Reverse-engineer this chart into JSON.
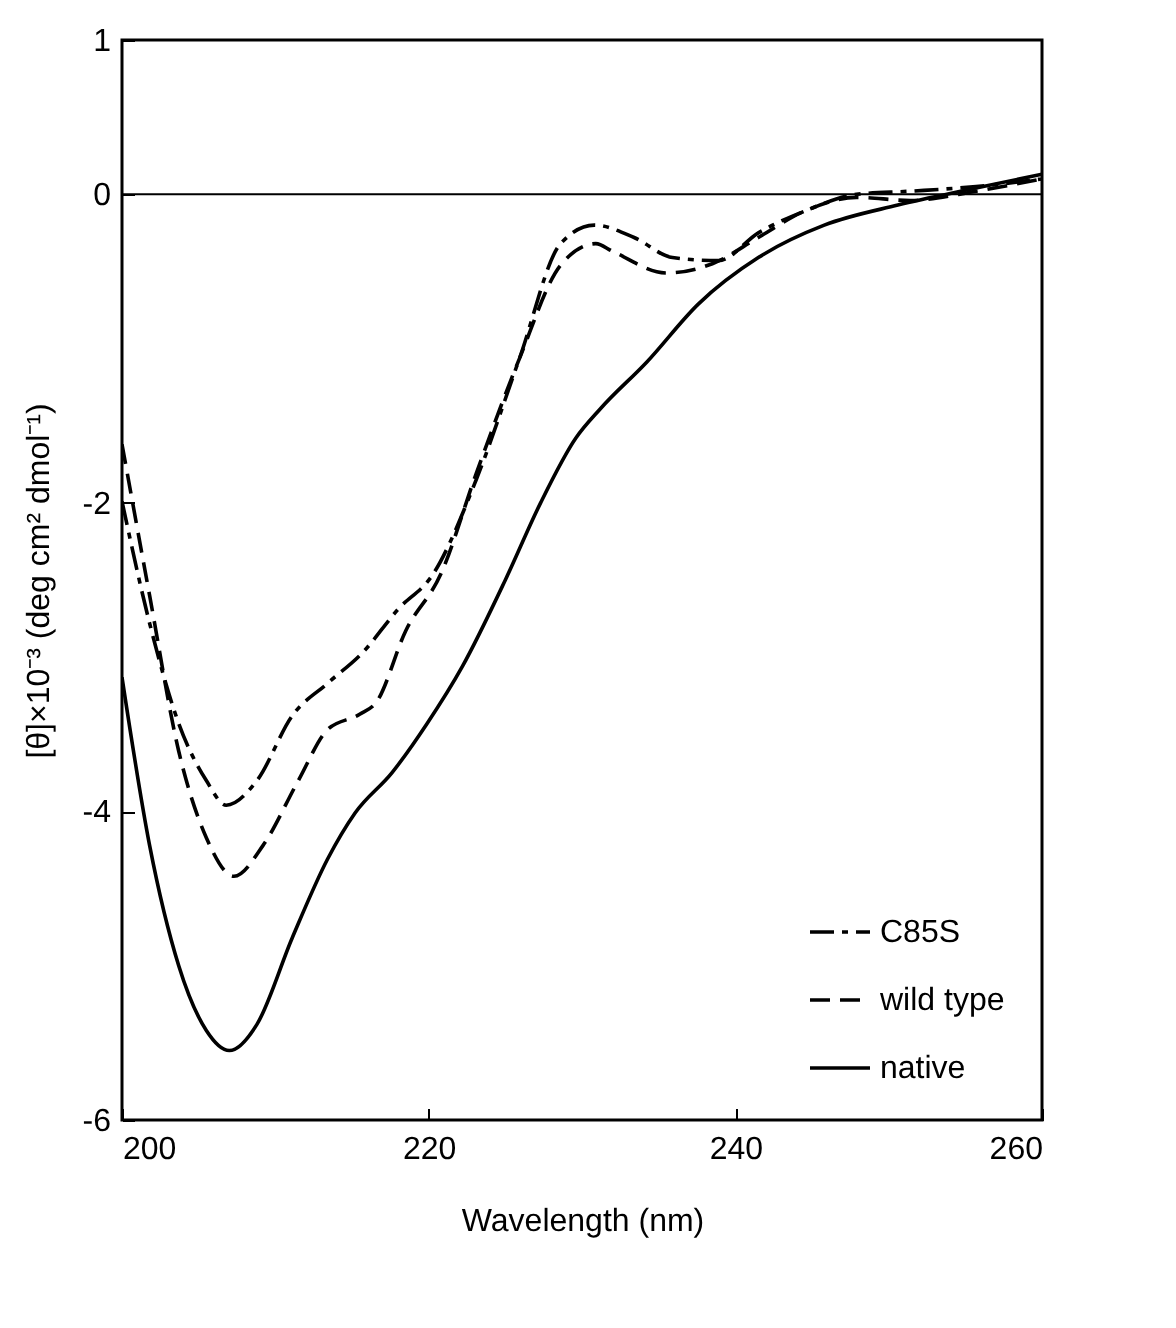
{
  "chart_data": {
    "type": "line",
    "xlabel": "Wavelength  (nm)",
    "ylabel": "[θ]×10⁻³ (deg cm² dmol⁻¹)",
    "xlim": [
      200,
      260
    ],
    "ylim": [
      -6,
      1
    ],
    "xticks": [
      200,
      220,
      240,
      260
    ],
    "yticks": [
      1,
      0,
      -2,
      -4,
      -6
    ],
    "grid": false,
    "legend": "bottom right",
    "marker": "none",
    "ref_lines": [
      {
        "axis": "y",
        "value": 0,
        "color": "#000000"
      }
    ],
    "series": [
      {
        "name": "C85S",
        "color": "#000000",
        "line_style": "dashdot",
        "x": [
          200,
          201.8,
          203.7,
          205.5,
          206.8,
          208.8,
          211.1,
          213.4,
          215.7,
          218,
          220.3,
          223.1,
          225.9,
          228.6,
          230.8,
          233.4,
          235.9,
          238.9,
          241.5,
          244.5,
          247.9,
          251.4,
          255.7,
          260
        ],
        "values": [
          -1.99,
          -2.78,
          -3.43,
          -3.8,
          -3.96,
          -3.8,
          -3.38,
          -3.17,
          -2.97,
          -2.69,
          -2.46,
          -1.85,
          -1.07,
          -0.32,
          -0.2,
          -0.28,
          -0.41,
          -0.43,
          -0.25,
          -0.11,
          0,
          0.02,
          0.05,
          0.1
        ]
      },
      {
        "name": "wild type",
        "color": "#000000",
        "line_style": "dashed",
        "x": [
          200,
          201.8,
          203.7,
          205.5,
          207.3,
          209.2,
          211.5,
          213.4,
          215.5,
          216.6,
          218.5,
          220.8,
          223.1,
          225.9,
          228.6,
          230.9,
          232,
          235.5,
          238.5,
          241.5,
          244.5,
          247.9,
          251.4,
          255.7,
          260
        ],
        "values": [
          -1.62,
          -2.6,
          -3.61,
          -4.17,
          -4.42,
          -4.22,
          -3.8,
          -3.47,
          -3.37,
          -3.29,
          -2.83,
          -2.46,
          -1.81,
          -1.07,
          -0.46,
          -0.32,
          -0.37,
          -0.51,
          -0.45,
          -0.28,
          -0.11,
          -0.02,
          -0.04,
          0.02,
          0.1
        ]
      },
      {
        "name": "native",
        "color": "#000000",
        "line_style": "solid",
        "x": [
          200,
          201.8,
          203.7,
          205.5,
          207,
          208.8,
          211.1,
          213.4,
          215.2,
          217.6,
          219.9,
          222.2,
          225,
          227.3,
          229.6,
          231.2,
          234.2,
          237.6,
          241.5,
          245.8,
          250.6,
          255.7,
          260
        ],
        "values": [
          -3.13,
          -4.22,
          -5,
          -5.42,
          -5.55,
          -5.38,
          -4.82,
          -4.31,
          -4.01,
          -3.75,
          -3.43,
          -3.06,
          -2.5,
          -2,
          -1.58,
          -1.39,
          -1.09,
          -0.71,
          -0.41,
          -0.2,
          -0.07,
          0.04,
          0.13
        ]
      }
    ]
  }
}
